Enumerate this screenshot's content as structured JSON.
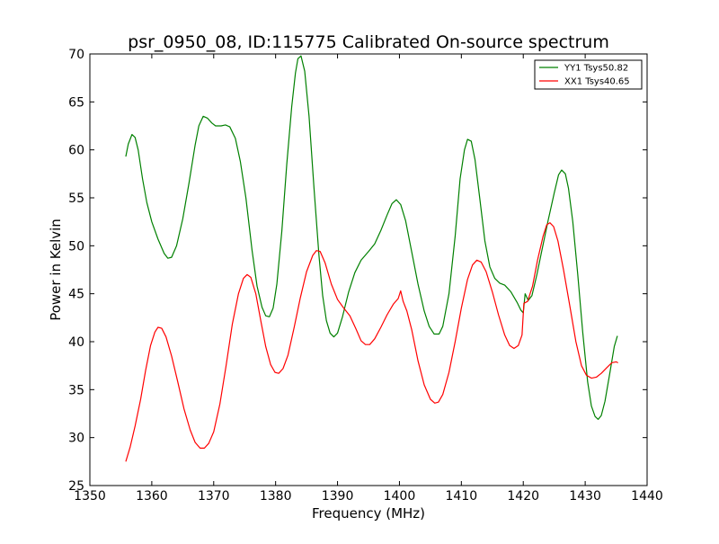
{
  "chart_data": {
    "type": "line",
    "title": "psr_0950_08, ID:115775 Calibrated On-source spectrum",
    "xlabel": "Frequency (MHz)",
    "ylabel": "Power in Kelvin",
    "xlim": [
      1350,
      1440
    ],
    "ylim": [
      25,
      70
    ],
    "xticks": [
      "1350",
      "1360",
      "1370",
      "1380",
      "1390",
      "1400",
      "1410",
      "1420",
      "1430",
      "1440"
    ],
    "yticks": [
      "25",
      "30",
      "35",
      "40",
      "45",
      "50",
      "55",
      "60",
      "65",
      "70"
    ],
    "grid": false,
    "legend_position": "top-right",
    "series": [
      {
        "name": "YY1 Tsys50.82",
        "color": "#008000",
        "points": [
          [
            1355.8,
            59.3
          ],
          [
            1356.2,
            60.6
          ],
          [
            1356.8,
            61.6
          ],
          [
            1357.3,
            61.3
          ],
          [
            1357.8,
            60.0
          ],
          [
            1358.5,
            57.0
          ],
          [
            1359.2,
            54.5
          ],
          [
            1360.0,
            52.5
          ],
          [
            1361.0,
            50.7
          ],
          [
            1362.0,
            49.2
          ],
          [
            1362.6,
            48.7
          ],
          [
            1363.2,
            48.8
          ],
          [
            1364.0,
            50.0
          ],
          [
            1365.0,
            52.8
          ],
          [
            1366.0,
            56.5
          ],
          [
            1367.0,
            60.5
          ],
          [
            1367.6,
            62.5
          ],
          [
            1368.3,
            63.5
          ],
          [
            1369.0,
            63.3
          ],
          [
            1369.7,
            62.8
          ],
          [
            1370.3,
            62.5
          ],
          [
            1371.2,
            62.5
          ],
          [
            1371.9,
            62.6
          ],
          [
            1372.6,
            62.4
          ],
          [
            1373.5,
            61.2
          ],
          [
            1374.3,
            58.8
          ],
          [
            1375.2,
            55.0
          ],
          [
            1376.2,
            49.5
          ],
          [
            1377.0,
            45.8
          ],
          [
            1377.8,
            43.6
          ],
          [
            1378.4,
            42.7
          ],
          [
            1379.0,
            42.6
          ],
          [
            1379.6,
            43.5
          ],
          [
            1380.2,
            46.0
          ],
          [
            1381.0,
            51.5
          ],
          [
            1381.8,
            58.5
          ],
          [
            1382.6,
            64.5
          ],
          [
            1383.2,
            68.0
          ],
          [
            1383.6,
            69.5
          ],
          [
            1384.1,
            69.8
          ],
          [
            1384.7,
            68.2
          ],
          [
            1385.4,
            63.5
          ],
          [
            1386.2,
            56.0
          ],
          [
            1387.0,
            49.0
          ],
          [
            1387.6,
            44.8
          ],
          [
            1388.2,
            42.2
          ],
          [
            1388.8,
            40.9
          ],
          [
            1389.4,
            40.5
          ],
          [
            1390.0,
            40.9
          ],
          [
            1390.8,
            42.6
          ],
          [
            1391.8,
            45.2
          ],
          [
            1392.8,
            47.2
          ],
          [
            1393.8,
            48.5
          ],
          [
            1395.0,
            49.4
          ],
          [
            1396.0,
            50.2
          ],
          [
            1397.0,
            51.6
          ],
          [
            1398.0,
            53.2
          ],
          [
            1398.8,
            54.4
          ],
          [
            1399.5,
            54.8
          ],
          [
            1400.2,
            54.3
          ],
          [
            1401.0,
            52.6
          ],
          [
            1402.0,
            49.3
          ],
          [
            1403.0,
            46.0
          ],
          [
            1404.0,
            43.2
          ],
          [
            1404.8,
            41.6
          ],
          [
            1405.6,
            40.8
          ],
          [
            1406.4,
            40.8
          ],
          [
            1407.0,
            41.6
          ],
          [
            1408.0,
            45.0
          ],
          [
            1409.0,
            51.0
          ],
          [
            1409.8,
            57.0
          ],
          [
            1410.5,
            60.0
          ],
          [
            1411.0,
            61.1
          ],
          [
            1411.6,
            60.9
          ],
          [
            1412.2,
            59.0
          ],
          [
            1413.0,
            54.8
          ],
          [
            1413.8,
            50.5
          ],
          [
            1414.6,
            47.8
          ],
          [
            1415.4,
            46.6
          ],
          [
            1416.2,
            46.1
          ],
          [
            1417.0,
            45.9
          ],
          [
            1418.0,
            45.2
          ],
          [
            1419.0,
            44.1
          ],
          [
            1419.6,
            43.3
          ],
          [
            1420.0,
            43.0
          ],
          [
            1420.3,
            45.0
          ],
          [
            1420.8,
            44.3
          ],
          [
            1421.4,
            44.8
          ],
          [
            1422.2,
            47.0
          ],
          [
            1423.0,
            49.5
          ],
          [
            1424.0,
            52.6
          ],
          [
            1425.0,
            55.5
          ],
          [
            1425.7,
            57.4
          ],
          [
            1426.2,
            57.9
          ],
          [
            1426.8,
            57.5
          ],
          [
            1427.3,
            56.0
          ],
          [
            1428.0,
            52.5
          ],
          [
            1428.8,
            47.0
          ],
          [
            1429.6,
            41.0
          ],
          [
            1430.4,
            35.8
          ],
          [
            1431.0,
            33.3
          ],
          [
            1431.6,
            32.2
          ],
          [
            1432.1,
            31.9
          ],
          [
            1432.6,
            32.3
          ],
          [
            1433.2,
            33.8
          ],
          [
            1434.0,
            36.8
          ],
          [
            1434.7,
            39.5
          ],
          [
            1435.2,
            40.6
          ]
        ]
      },
      {
        "name": "XX1 Tsys40.65",
        "color": "#ff0000",
        "points": [
          [
            1355.8,
            27.5
          ],
          [
            1356.5,
            29.0
          ],
          [
            1357.3,
            31.2
          ],
          [
            1358.2,
            34.0
          ],
          [
            1359.0,
            37.0
          ],
          [
            1359.8,
            39.6
          ],
          [
            1360.5,
            41.0
          ],
          [
            1361.0,
            41.5
          ],
          [
            1361.6,
            41.4
          ],
          [
            1362.3,
            40.5
          ],
          [
            1363.2,
            38.5
          ],
          [
            1364.2,
            35.8
          ],
          [
            1365.2,
            33.0
          ],
          [
            1366.2,
            30.8
          ],
          [
            1367.0,
            29.5
          ],
          [
            1367.8,
            28.9
          ],
          [
            1368.5,
            28.9
          ],
          [
            1369.2,
            29.4
          ],
          [
            1370.0,
            30.6
          ],
          [
            1371.0,
            33.5
          ],
          [
            1372.0,
            37.5
          ],
          [
            1373.0,
            41.8
          ],
          [
            1374.0,
            45.0
          ],
          [
            1374.8,
            46.6
          ],
          [
            1375.4,
            47.0
          ],
          [
            1376.0,
            46.7
          ],
          [
            1376.8,
            45.0
          ],
          [
            1377.6,
            42.2
          ],
          [
            1378.4,
            39.5
          ],
          [
            1379.2,
            37.6
          ],
          [
            1379.9,
            36.8
          ],
          [
            1380.5,
            36.7
          ],
          [
            1381.2,
            37.2
          ],
          [
            1382.0,
            38.6
          ],
          [
            1383.0,
            41.5
          ],
          [
            1384.0,
            44.6
          ],
          [
            1385.0,
            47.3
          ],
          [
            1386.0,
            49.0
          ],
          [
            1386.6,
            49.5
          ],
          [
            1387.2,
            49.4
          ],
          [
            1388.0,
            48.2
          ],
          [
            1389.0,
            46.0
          ],
          [
            1390.0,
            44.4
          ],
          [
            1391.0,
            43.5
          ],
          [
            1392.0,
            42.7
          ],
          [
            1393.0,
            41.3
          ],
          [
            1393.8,
            40.1
          ],
          [
            1394.5,
            39.7
          ],
          [
            1395.2,
            39.7
          ],
          [
            1396.0,
            40.3
          ],
          [
            1397.0,
            41.5
          ],
          [
            1398.0,
            42.8
          ],
          [
            1399.0,
            43.9
          ],
          [
            1399.8,
            44.5
          ],
          [
            1400.2,
            45.3
          ],
          [
            1400.6,
            44.2
          ],
          [
            1401.2,
            43.2
          ],
          [
            1402.0,
            41.2
          ],
          [
            1403.0,
            38.0
          ],
          [
            1404.0,
            35.5
          ],
          [
            1405.0,
            34.0
          ],
          [
            1405.7,
            33.6
          ],
          [
            1406.3,
            33.7
          ],
          [
            1407.0,
            34.5
          ],
          [
            1408.0,
            36.8
          ],
          [
            1409.0,
            40.0
          ],
          [
            1410.0,
            43.5
          ],
          [
            1411.0,
            46.5
          ],
          [
            1411.8,
            48.0
          ],
          [
            1412.5,
            48.5
          ],
          [
            1413.2,
            48.3
          ],
          [
            1414.0,
            47.3
          ],
          [
            1415.0,
            45.2
          ],
          [
            1416.0,
            42.8
          ],
          [
            1417.0,
            40.7
          ],
          [
            1417.8,
            39.6
          ],
          [
            1418.5,
            39.3
          ],
          [
            1419.2,
            39.6
          ],
          [
            1419.8,
            40.7
          ],
          [
            1420.1,
            44.0
          ],
          [
            1420.7,
            44.2
          ],
          [
            1421.5,
            45.8
          ],
          [
            1422.3,
            48.5
          ],
          [
            1423.2,
            51.0
          ],
          [
            1423.8,
            52.2
          ],
          [
            1424.3,
            52.4
          ],
          [
            1424.9,
            52.0
          ],
          [
            1425.6,
            50.5
          ],
          [
            1426.5,
            47.5
          ],
          [
            1427.5,
            43.8
          ],
          [
            1428.5,
            40.0
          ],
          [
            1429.4,
            37.5
          ],
          [
            1430.2,
            36.5
          ],
          [
            1431.0,
            36.2
          ],
          [
            1431.8,
            36.3
          ],
          [
            1432.6,
            36.7
          ],
          [
            1433.5,
            37.3
          ],
          [
            1434.3,
            37.8
          ],
          [
            1435.0,
            37.9
          ],
          [
            1435.3,
            37.8
          ]
        ]
      }
    ]
  }
}
